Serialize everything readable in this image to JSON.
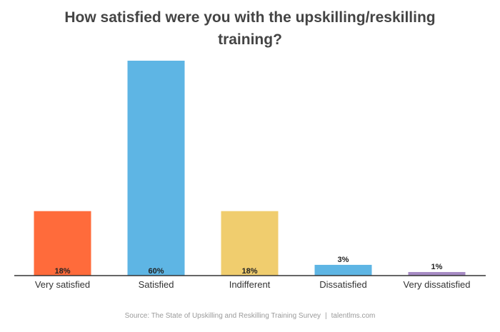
{
  "chart_data": {
    "type": "bar",
    "title": "How satisfied were you with the upskilling/reskilling training?",
    "categories": [
      "Very satisfied",
      "Satisfied",
      "Indifferent",
      "Dissatisfied",
      "Very dissatisfied"
    ],
    "values": [
      18,
      60,
      18,
      3,
      1
    ],
    "value_labels": [
      "18%",
      "60%",
      "18%",
      "3%",
      "1%"
    ],
    "colors": [
      "#FF6B3B",
      "#5EB5E4",
      "#F0CD6E",
      "#5EB5E4",
      "#A68BC4"
    ],
    "xlabel": "",
    "ylabel": "",
    "ylim": [
      0,
      60
    ],
    "grid": false,
    "legend": "none"
  },
  "source": {
    "text": "Source: The State of Upskilling and Reskilling Training Survey",
    "separator": "|",
    "site": "talentlms.com"
  }
}
